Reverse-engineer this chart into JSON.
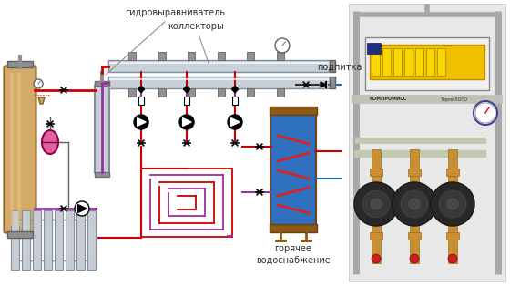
{
  "bg_color": "#ffffff",
  "label_gidro": "гидровыравниватель",
  "label_kollektory": "коллекторы",
  "label_podpitka": "подпитка",
  "label_goryachee": "горячее\nводоснабжение",
  "line_red": "#cc0000",
  "line_purple": "#9b30a0",
  "line_blue": "#1a6ab0",
  "boiler_color": "#d4aa6a",
  "boiler_border": "#8b6020",
  "collector_color": "#c8d0d8",
  "collector_border": "#8090a0",
  "hydro_color": "#c8d0d8",
  "hydro_border": "#8090a0",
  "radiator_color": "#c0c8d0",
  "balloon_color": "#e060a0",
  "balloon_border": "#900050",
  "hwt_blue": "#3070c0",
  "hwt_border": "#704010",
  "annotation_color": "#303030",
  "arrow_color": "#909090",
  "photo_frame": "#b0b0b0",
  "photo_bg": "#d8d8d8"
}
